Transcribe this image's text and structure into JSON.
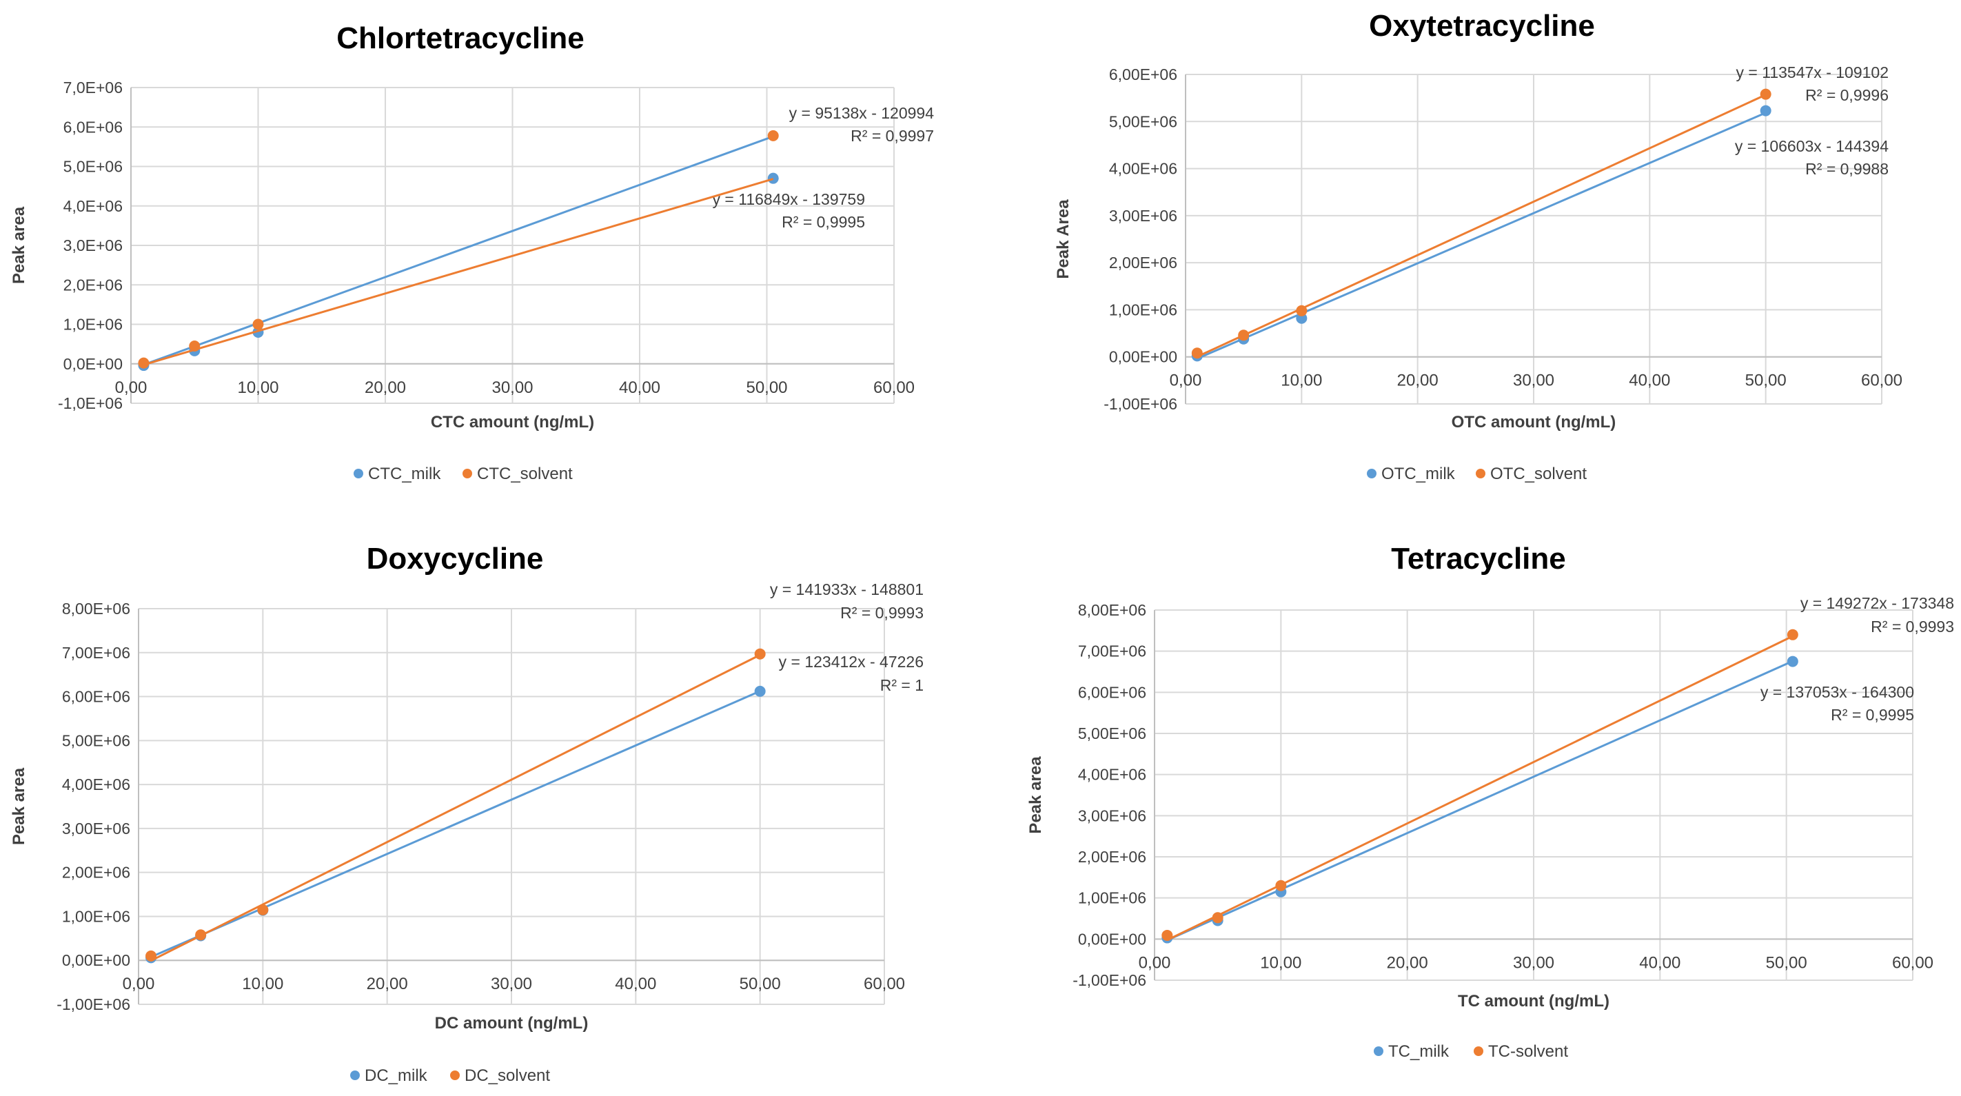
{
  "chart_data": [
    {
      "type": "scatter",
      "title": "Chlortetracycline",
      "xlabel": "CTC amount (ng/mL)",
      "ylabel": "Peak area",
      "xlim": [
        0,
        60
      ],
      "ylim": [
        -1000000,
        7000000
      ],
      "x_ticks": [
        "0,00",
        "10,00",
        "20,00",
        "30,00",
        "40,00",
        "50,00",
        "60,00"
      ],
      "y_ticks": [
        "-1,0E+06",
        "0,0E+00",
        "1,0E+06",
        "2,0E+06",
        "3,0E+06",
        "4,0E+06",
        "5,0E+06",
        "6,0E+06",
        "7,0E+06"
      ],
      "grid": true,
      "legend": "bottom",
      "series": [
        {
          "name": "CTC_milk",
          "color": "#5B9BD5",
          "x": [
            1,
            5,
            10,
            50.5
          ],
          "y": [
            -40000,
            330000,
            800000,
            4700000
          ],
          "fit": [
            116849,
            -139759
          ],
          "equation": "y = 116849x - 139759",
          "r2": "R² = 0,9995"
        },
        {
          "name": "CTC_solvent",
          "color": "#ED7D31",
          "x": [
            1,
            5,
            10,
            50.5
          ],
          "y": [
            20000,
            450000,
            1000000,
            5780000
          ],
          "fit": [
            95138,
            -120994
          ],
          "equation": "y = 95138x - 120994",
          "r2": "R² = 0,9997"
        }
      ]
    },
    {
      "type": "scatter",
      "title": "Oxytetracycline",
      "xlabel": "OTC amount (ng/mL)",
      "ylabel": "Peak Area",
      "xlim": [
        0,
        60
      ],
      "ylim": [
        -1000000,
        6000000
      ],
      "x_ticks": [
        "0,00",
        "10,00",
        "20,00",
        "30,00",
        "40,00",
        "50,00",
        "60,00"
      ],
      "y_ticks": [
        "-1,00E+06",
        "0,00E+00",
        "1,00E+06",
        "2,00E+06",
        "3,00E+06",
        "4,00E+06",
        "5,00E+06",
        "6,00E+06"
      ],
      "grid": true,
      "legend": "bottom",
      "series": [
        {
          "name": "OTC_milk",
          "color": "#5B9BD5",
          "x": [
            1,
            5,
            10,
            50
          ],
          "y": [
            20000,
            380000,
            820000,
            5230000
          ],
          "fit": [
            106603,
            -144394
          ],
          "equation": "y = 106603x - 144394",
          "r2": "R² = 0,9988"
        },
        {
          "name": "OTC_solvent",
          "color": "#ED7D31",
          "x": [
            1,
            5,
            10,
            50
          ],
          "y": [
            80000,
            460000,
            980000,
            5580000
          ],
          "fit": [
            113547,
            -109102
          ],
          "equation": "y = 113547x - 109102",
          "r2": "R² = 0,9996"
        }
      ]
    },
    {
      "type": "scatter",
      "title": "Doxycycline",
      "xlabel": "DC amount (ng/mL)",
      "ylabel": "Peak area",
      "xlim": [
        0,
        60
      ],
      "ylim": [
        -1000000,
        8000000
      ],
      "x_ticks": [
        "0,00",
        "10,00",
        "20,00",
        "30,00",
        "40,00",
        "50,00",
        "60,00"
      ],
      "y_ticks": [
        "-1,00E+06",
        "0,00E+00",
        "1,00E+06",
        "2,00E+06",
        "3,00E+06",
        "4,00E+06",
        "5,00E+06",
        "6,00E+06",
        "7,00E+06",
        "8,00E+06"
      ],
      "grid": true,
      "legend": "bottom",
      "series": [
        {
          "name": "DC_milk",
          "color": "#5B9BD5",
          "x": [
            1,
            5,
            10,
            50
          ],
          "y": [
            60000,
            560000,
            1140000,
            6120000
          ],
          "fit": [
            123412,
            -47226
          ],
          "equation": "y = 123412x - 47226",
          "r2": "R² = 1"
        },
        {
          "name": "DC_solvent",
          "color": "#ED7D31",
          "x": [
            1,
            5,
            10,
            50
          ],
          "y": [
            100000,
            580000,
            1150000,
            6970000
          ],
          "fit": [
            141933,
            -148801
          ],
          "equation": "y = 141933x - 148801",
          "r2": "R² = 0,9993"
        }
      ]
    },
    {
      "type": "scatter",
      "title": "Tetracycline",
      "xlabel": "TC amount (ng/mL)",
      "ylabel": "Peak area",
      "xlim": [
        0,
        60
      ],
      "ylim": [
        -1000000,
        8000000
      ],
      "x_ticks": [
        "0,00",
        "10,00",
        "20,00",
        "30,00",
        "40,00",
        "50,00",
        "60,00"
      ],
      "y_ticks": [
        "-1,00E+06",
        "0,00E+00",
        "1,00E+06",
        "2,00E+06",
        "3,00E+06",
        "4,00E+06",
        "5,00E+06",
        "6,00E+06",
        "7,00E+06",
        "8,00E+06"
      ],
      "grid": true,
      "legend": "bottom",
      "series": [
        {
          "name": "TC_milk",
          "color": "#5B9BD5",
          "x": [
            1,
            5,
            10,
            50.5
          ],
          "y": [
            30000,
            450000,
            1150000,
            6750000
          ],
          "fit": [
            137053,
            -164300
          ],
          "equation": "y = 137053x - 164300",
          "r2": "R² = 0,9995"
        },
        {
          "name": "TC-solvent",
          "color": "#ED7D31",
          "x": [
            1,
            5,
            10,
            50.5
          ],
          "y": [
            90000,
            520000,
            1300000,
            7400000
          ],
          "fit": [
            149272,
            -173348
          ],
          "equation": "y = 149272x - 173348",
          "r2": "R² = 0,9993"
        }
      ]
    }
  ]
}
